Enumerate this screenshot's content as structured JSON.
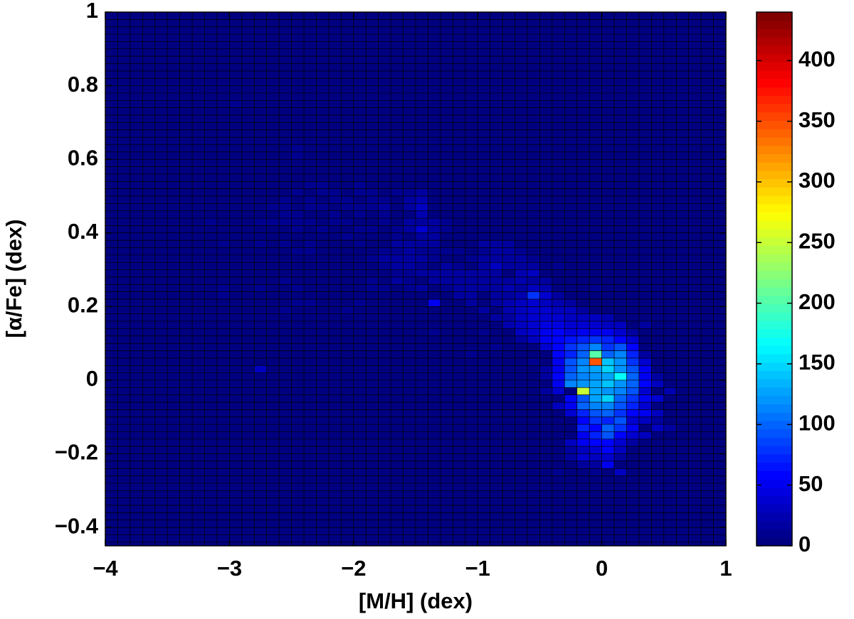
{
  "chart_data": {
    "type": "heatmap",
    "xlabel": "[M/H] (dex)",
    "ylabel": "[α/Fe] (dex)",
    "xlim": [
      -4,
      1
    ],
    "ylim": [
      -0.45,
      1
    ],
    "xticks": [
      {
        "value": -4,
        "label": "−4"
      },
      {
        "value": -3,
        "label": "−3"
      },
      {
        "value": -2,
        "label": "−2"
      },
      {
        "value": -1,
        "label": "−1"
      },
      0,
      1
    ],
    "yticks": [
      {
        "value": -0.4,
        "label": "−0.4"
      },
      {
        "value": -0.2,
        "label": "−0.2"
      },
      0,
      0.2,
      0.4,
      0.6,
      0.8,
      1
    ],
    "colormap": "jet",
    "clim": [
      0,
      440
    ],
    "cticks": [
      0,
      50,
      100,
      150,
      200,
      250,
      300,
      350,
      400
    ],
    "xbins": [
      -4,
      -3.9,
      -3.8,
      -3.7,
      -3.6,
      -3.5,
      -3.4,
      -3.3,
      -3.2,
      -3.1,
      -3,
      -2.9,
      -2.8,
      -2.7,
      -2.6,
      -2.5,
      -2.4,
      -2.3,
      -2.2,
      -2.1,
      -2,
      -1.9,
      -1.8,
      -1.7,
      -1.6,
      -1.5,
      -1.4,
      -1.3,
      -1.2,
      -1.1,
      -1,
      -0.9,
      -0.8,
      -0.7,
      -0.6,
      -0.5,
      -0.4,
      -0.3,
      -0.2,
      -0.1,
      0,
      0.1,
      0.2,
      0.3,
      0.4,
      0.5,
      0.6,
      0.7,
      0.8,
      0.9,
      1
    ],
    "ybins": [
      -0.46,
      -0.44,
      -0.42,
      -0.4,
      -0.38,
      -0.36,
      -0.34,
      -0.32,
      -0.3,
      -0.28,
      -0.26,
      -0.24,
      -0.22,
      -0.2,
      -0.18,
      -0.16,
      -0.14,
      -0.12,
      -0.1,
      -0.08,
      -0.06,
      -0.04,
      -0.02,
      0,
      0.02,
      0.04,
      0.06,
      0.08,
      0.1,
      0.12,
      0.14,
      0.16,
      0.18,
      0.2,
      0.22,
      0.24,
      0.26,
      0.28,
      0.3,
      0.32,
      0.34,
      0.36,
      0.38,
      0.4,
      0.42,
      0.44,
      0.46,
      0.48,
      0.5,
      0.52,
      0.54,
      0.56,
      0.58,
      0.6,
      0.62,
      0.64,
      0.66,
      0.68,
      0.7,
      0.72,
      0.74,
      0.76,
      0.78,
      0.8,
      0.82,
      0.84,
      0.86,
      0.88,
      0.9,
      0.92,
      0.94,
      0.96,
      0.98,
      1
    ],
    "rows": [
      {
        "y": 0.75,
        "x": [
          -2.95
        ],
        "values": [
          10
        ]
      },
      {
        "y": 0.63,
        "x": [
          -2.45
        ],
        "values": [
          8
        ]
      },
      {
        "y": 0.61,
        "x": [
          -2.45
        ],
        "values": [
          8
        ]
      },
      {
        "y": 0.55,
        "x": [
          -2.35,
          -1.75
        ],
        "values": [
          6,
          6
        ]
      },
      {
        "y": 0.53,
        "x": [
          -2.35,
          -2.25,
          -1.95,
          -1.65
        ],
        "values": [
          8,
          10,
          8,
          6
        ]
      },
      {
        "y": 0.51,
        "x": [
          -2.85,
          -2.45,
          -2.25,
          -2.15,
          -1.95,
          -1.85,
          -1.65,
          -1.55,
          -1.45
        ],
        "values": [
          6,
          8,
          8,
          10,
          10,
          8,
          10,
          12,
          14
        ]
      },
      {
        "y": 0.49,
        "x": [
          -2.55,
          -2.35,
          -2.15,
          -2.05,
          -1.85,
          -1.75,
          -1.55,
          -1.45
        ],
        "values": [
          8,
          8,
          10,
          10,
          12,
          8,
          20,
          22
        ]
      },
      {
        "y": 0.47,
        "x": [
          -2.65,
          -2.55,
          -2.35,
          -2.25,
          -2.05,
          -1.95,
          -1.85,
          -1.75,
          -1.55,
          -1.45
        ],
        "values": [
          8,
          10,
          10,
          8,
          12,
          8,
          10,
          14,
          14,
          30
        ]
      },
      {
        "y": 0.45,
        "x": [
          -2.55,
          -2.45,
          -2.15,
          -1.95,
          -1.75,
          -1.45
        ],
        "values": [
          8,
          10,
          8,
          10,
          12,
          24
        ]
      },
      {
        "y": 0.43,
        "x": [
          -3.15,
          -2.75,
          -2.65,
          -2.55,
          -2.45,
          -2.35,
          -2.15,
          -2.05,
          -1.75,
          -1.55,
          -1.45,
          -1.35,
          -1.25
        ],
        "values": [
          8,
          10,
          8,
          10,
          8,
          10,
          10,
          8,
          10,
          16,
          18,
          14,
          12
        ]
      },
      {
        "y": 0.41,
        "x": [
          -2.45,
          -2.25,
          -1.95,
          -1.85,
          -1.65,
          -1.55,
          -1.45,
          -1.35,
          -1.25
        ],
        "values": [
          8,
          8,
          10,
          12,
          10,
          20,
          40,
          14,
          10
        ]
      },
      {
        "y": 0.39,
        "x": [
          -2.05,
          -1.65,
          -1.45,
          -1.35
        ],
        "values": [
          8,
          12,
          18,
          14
        ]
      },
      {
        "y": 0.37,
        "x": [
          -3.05,
          -2.75,
          -2.55,
          -2.35,
          -1.95,
          -1.65,
          -1.55,
          -1.45,
          -1.35,
          -0.95,
          -0.85,
          -0.75
        ],
        "values": [
          8,
          8,
          8,
          10,
          10,
          14,
          16,
          14,
          16,
          14,
          16,
          14
        ]
      },
      {
        "y": 0.35,
        "x": [
          -2.45,
          -2.35,
          -1.75,
          -1.65,
          -1.55,
          -1.45,
          -1.35,
          -1.25,
          -1.15,
          -0.95,
          -0.85,
          -0.75,
          -0.65
        ],
        "values": [
          8,
          10,
          10,
          12,
          14,
          12,
          10,
          12,
          10,
          12,
          20,
          14,
          10
        ]
      },
      {
        "y": 0.33,
        "x": [
          -1.85,
          -1.75,
          -1.65,
          -1.55,
          -1.45,
          -1.35,
          -1.05,
          -0.95,
          -0.85,
          -0.75,
          -0.65,
          -0.55
        ],
        "values": [
          10,
          16,
          20,
          18,
          16,
          12,
          12,
          16,
          14,
          18,
          14,
          12
        ]
      },
      {
        "y": 0.31,
        "x": [
          -1.75,
          -1.65,
          -1.55,
          -1.45,
          -1.25,
          -1.15,
          -0.95,
          -0.85,
          -0.75,
          -0.65,
          -0.55,
          -0.35
        ],
        "values": [
          12,
          14,
          16,
          12,
          16,
          12,
          18,
          30,
          20,
          16,
          18,
          10
        ]
      },
      {
        "y": 0.29,
        "x": [
          -1.65,
          -1.55,
          -1.45,
          -1.35,
          -1.25,
          -1.15,
          -1.05,
          -0.95,
          -0.85,
          -0.65,
          -0.55
        ],
        "values": [
          12,
          10,
          18,
          14,
          16,
          14,
          18,
          14,
          14,
          22,
          30
        ]
      },
      {
        "y": 0.27,
        "x": [
          -2.55,
          -1.85,
          -1.65,
          -1.55,
          -1.35,
          -1.25,
          -1.15,
          -1.05,
          -0.95,
          -0.85,
          -0.75,
          -0.65,
          -0.55,
          -0.45
        ],
        "values": [
          8,
          10,
          14,
          12,
          16,
          14,
          14,
          20,
          14,
          16,
          20,
          24,
          20,
          18
        ]
      },
      {
        "y": 0.25,
        "x": [
          -3.05,
          -2.75,
          -2.45,
          -1.85,
          -1.75,
          -1.55,
          -1.45,
          -1.25,
          -1.15,
          -1.05,
          -0.95,
          -0.85,
          -0.75,
          -0.65,
          -0.55,
          -0.45,
          -0.05
        ],
        "values": [
          8,
          10,
          8,
          10,
          10,
          12,
          14,
          12,
          16,
          14,
          16,
          20,
          24,
          20,
          30,
          26,
          10
        ]
      },
      {
        "y": 0.23,
        "x": [
          -3.05,
          -1.15,
          -1.05,
          -0.85,
          -0.75,
          -0.65,
          -0.55,
          -0.45,
          -0.35
        ],
        "values": [
          8,
          14,
          18,
          16,
          20,
          24,
          80,
          40,
          20
        ]
      },
      {
        "y": 0.21,
        "x": [
          -2.45,
          -2.35,
          -1.95,
          -1.35,
          -1.05,
          -0.85,
          -0.75,
          -0.65,
          -0.55,
          -0.45,
          -0.35,
          -0.25
        ],
        "values": [
          8,
          8,
          10,
          50,
          14,
          18,
          22,
          30,
          36,
          30,
          26,
          20
        ]
      },
      {
        "y": 0.19,
        "x": [
          -2.55,
          -2.05,
          -0.95,
          -0.75,
          -0.65,
          -0.55,
          -0.45,
          -0.35,
          -0.25,
          -0.15
        ],
        "values": [
          8,
          10,
          16,
          24,
          30,
          40,
          36,
          32,
          30,
          18
        ]
      },
      {
        "y": 0.17,
        "x": [
          -0.85,
          -0.75,
          -0.65,
          -0.55,
          -0.45,
          -0.35,
          -0.25,
          -0.15,
          -0.05,
          0.05
        ],
        "values": [
          14,
          20,
          34,
          36,
          38,
          40,
          34,
          28,
          30,
          22
        ]
      },
      {
        "y": 0.15,
        "x": [
          -0.75,
          -0.65,
          -0.55,
          -0.45,
          -0.35,
          -0.25,
          -0.15,
          -0.05,
          0.05,
          0.15,
          0.35
        ],
        "values": [
          26,
          30,
          40,
          44,
          48,
          40,
          36,
          40,
          34,
          28,
          14
        ]
      },
      {
        "y": 0.13,
        "x": [
          -1.35,
          -0.95,
          -0.65,
          -0.55,
          -0.45,
          -0.35,
          -0.25,
          -0.15,
          -0.05,
          0.05,
          0.15,
          0.25
        ],
        "values": [
          8,
          12,
          28,
          36,
          52,
          56,
          48,
          50,
          52,
          50,
          40,
          20
        ]
      },
      {
        "y": 0.11,
        "x": [
          -0.65,
          -0.55,
          -0.45,
          -0.35,
          -0.25,
          -0.15,
          -0.05,
          0.05,
          0.15,
          0.25
        ],
        "values": [
          20,
          30,
          50,
          60,
          64,
          70,
          80,
          70,
          60,
          36
        ]
      },
      {
        "y": 0.09,
        "x": [
          -0.85,
          -0.45,
          -0.35,
          -0.25,
          -0.15,
          -0.05,
          0.05,
          0.15,
          0.25
        ],
        "values": [
          10,
          40,
          60,
          80,
          90,
          110,
          80,
          90,
          60
        ]
      },
      {
        "y": 0.07,
        "x": [
          -1.05,
          -0.35,
          -0.25,
          -0.15,
          -0.05,
          0.05,
          0.15,
          0.25,
          0.35
        ],
        "values": [
          10,
          60,
          70,
          100,
          200,
          100,
          110,
          70,
          20
        ]
      },
      {
        "y": 0.05,
        "x": [
          -0.55,
          -0.35,
          -0.25,
          -0.15,
          -0.05,
          0.05,
          0.15,
          0.25,
          0.35
        ],
        "values": [
          10,
          50,
          90,
          110,
          350,
          140,
          120,
          80,
          40
        ]
      },
      {
        "y": 0.03,
        "x": [
          -2.75,
          -0.45,
          -0.35,
          -0.25,
          -0.15,
          -0.05,
          0.05,
          0.15,
          0.25,
          0.35
        ],
        "values": [
          30,
          20,
          50,
          90,
          120,
          130,
          150,
          120,
          90,
          50
        ]
      },
      {
        "y": 0.01,
        "x": [
          -0.45,
          -0.35,
          -0.25,
          -0.15,
          -0.05,
          0.05,
          0.15,
          0.25,
          0.35,
          0.45
        ],
        "values": [
          20,
          60,
          100,
          110,
          120,
          130,
          170,
          100,
          50,
          20
        ]
      },
      {
        "y": -0.01,
        "x": [
          -0.35,
          -0.25,
          -0.15,
          -0.05,
          0.05,
          0.15,
          0.25,
          0.35,
          0.45
        ],
        "values": [
          50,
          110,
          120,
          130,
          140,
          120,
          100,
          60,
          30
        ]
      },
      {
        "y": -0.03,
        "x": [
          -0.45,
          -0.35,
          -0.15,
          -0.05,
          0.05,
          0.15,
          0.25,
          0.35,
          0.55
        ],
        "values": [
          20,
          40,
          250,
          130,
          120,
          110,
          90,
          40,
          24
        ]
      },
      {
        "y": -0.05,
        "x": [
          -0.25,
          -0.15,
          -0.05,
          0.05,
          0.15,
          0.25,
          0.35,
          0.45
        ],
        "values": [
          60,
          90,
          130,
          150,
          100,
          80,
          50,
          40
        ]
      },
      {
        "y": -0.07,
        "x": [
          -0.35,
          -0.25,
          -0.15,
          -0.05,
          0.05,
          0.15,
          0.25,
          0.35
        ],
        "values": [
          30,
          50,
          100,
          110,
          110,
          90,
          70,
          40
        ]
      },
      {
        "y": -0.09,
        "x": [
          -0.25,
          -0.15,
          -0.05,
          0.05,
          0.15,
          0.25,
          0.35,
          0.45
        ],
        "values": [
          40,
          70,
          90,
          100,
          80,
          60,
          50,
          30
        ]
      },
      {
        "y": -0.11,
        "x": [
          -0.15,
          -0.05,
          0.05,
          0.15,
          0.25,
          0.35,
          0.45
        ],
        "values": [
          60,
          80,
          70,
          90,
          40,
          30,
          20
        ]
      },
      {
        "y": -0.13,
        "x": [
          -0.15,
          -0.05,
          0.05,
          0.15,
          0.25,
          0.45,
          0.55
        ],
        "values": [
          70,
          60,
          100,
          80,
          50,
          30,
          20
        ]
      },
      {
        "y": -0.15,
        "x": [
          -0.15,
          -0.05,
          0.05,
          0.15,
          0.25,
          0.35
        ],
        "values": [
          50,
          70,
          90,
          60,
          40,
          30
        ]
      },
      {
        "y": -0.17,
        "x": [
          -0.25,
          -0.15,
          -0.05,
          0.05,
          0.15,
          0.25
        ],
        "values": [
          30,
          50,
          60,
          60,
          40,
          20
        ]
      },
      {
        "y": -0.19,
        "x": [
          -0.25,
          -0.15,
          -0.05,
          0.05,
          0.15
        ],
        "values": [
          20,
          30,
          40,
          60,
          30
        ]
      },
      {
        "y": -0.21,
        "x": [
          -0.25,
          -0.15,
          -0.05,
          0.05,
          0.15
        ],
        "values": [
          20,
          40,
          30,
          40,
          20
        ]
      },
      {
        "y": -0.23,
        "x": [
          -0.15,
          -0.05,
          0.05
        ],
        "values": [
          20,
          20,
          50
        ]
      },
      {
        "y": -0.25,
        "x": [
          -0.35,
          -0.05,
          0.15
        ],
        "values": [
          10,
          12,
          30
        ]
      }
    ]
  }
}
